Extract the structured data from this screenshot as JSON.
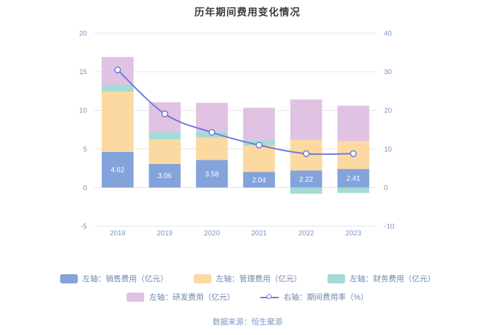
{
  "title": "历年期间费用变化情况",
  "source": "数据来源：恒生聚源",
  "chart_data": {
    "type": "bar",
    "subtype": "stacked-bar-with-line",
    "title": "历年期间费用变化情况",
    "categories": [
      "2018",
      "2019",
      "2020",
      "2021",
      "2022",
      "2023"
    ],
    "left_axis": {
      "min": -5,
      "max": 20,
      "ticks": [
        20,
        15,
        10,
        5,
        0,
        -5
      ]
    },
    "right_axis": {
      "min": -10,
      "max": 40,
      "ticks": [
        40,
        30,
        20,
        10,
        0,
        -10
      ]
    },
    "grid": true,
    "legend_position": "bottom",
    "series": [
      {
        "name": "左轴：销售费用（亿元）",
        "axis": "left",
        "type": "bar",
        "stack": true,
        "color": "#84a3da",
        "values": [
          4.62,
          3.06,
          3.58,
          2.04,
          2.22,
          2.41
        ],
        "data_labels": [
          "4.62",
          "3.06",
          "3.58",
          "2.04",
          "2.22",
          "2.41"
        ]
      },
      {
        "name": "左轴：管理费用（亿元）",
        "axis": "left",
        "type": "bar",
        "stack": true,
        "color": "#fbd9a0",
        "values": [
          7.8,
          3.2,
          2.9,
          3.4,
          4.0,
          3.6
        ]
      },
      {
        "name": "左轴：财务费用（亿元）",
        "axis": "left",
        "type": "bar",
        "stack": true,
        "color": "#a3dbd6",
        "values": [
          0.9,
          0.9,
          0.7,
          0.7,
          -0.8,
          -0.7
        ]
      },
      {
        "name": "左轴：研发费用（亿元）",
        "axis": "left",
        "type": "bar",
        "stack": true,
        "color": "#e0c2e2",
        "values": [
          3.6,
          3.9,
          3.8,
          4.2,
          5.2,
          4.6
        ]
      },
      {
        "name": "右轴：期间费用率（%）",
        "axis": "right",
        "type": "line",
        "color": "#6f78d9",
        "values": [
          30.5,
          19.1,
          14.3,
          11.0,
          8.8,
          8.8
        ]
      }
    ]
  }
}
